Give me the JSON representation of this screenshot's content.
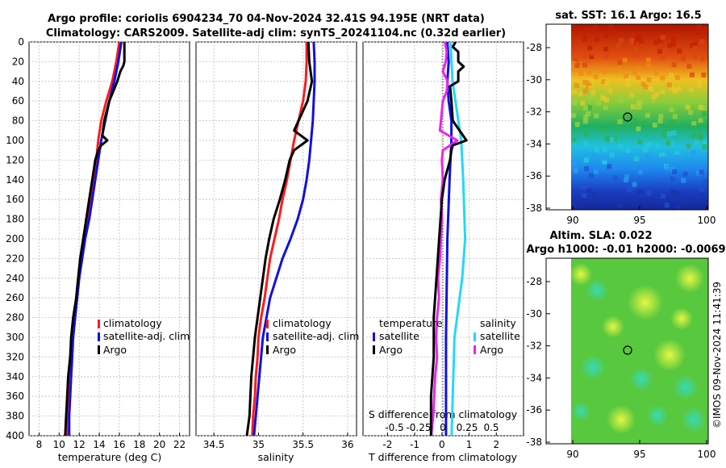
{
  "title_line1": "Argo profile: coriolis 6904234_70 04-Nov-2024 32.41S 94.195E (NRT data)",
  "title_line2": "Climatology: CARS2009. Satellite-adj clim: synTS_20241104.nc (0.32d earlier)",
  "depth_ticks": [
    0,
    20,
    40,
    60,
    80,
    100,
    120,
    140,
    160,
    180,
    200,
    220,
    240,
    260,
    280,
    300,
    320,
    340,
    360,
    380,
    400
  ],
  "panels": {
    "temperature": {
      "xlabel": "temperature (deg C)",
      "xlim": [
        7,
        23
      ],
      "xticks": [
        8,
        10,
        12,
        14,
        16,
        18,
        20,
        22
      ],
      "legend": [
        "climatology",
        "satellite-adj. clim",
        "Argo"
      ]
    },
    "salinity": {
      "xlabel": "salinity",
      "xlim": [
        34.3,
        36.1
      ],
      "xticks": [
        "34.5",
        "35",
        "35.5",
        "36"
      ],
      "legend": [
        "climatology",
        "satellite-adj. clim",
        "Argo"
      ]
    },
    "difference": {
      "xlabel": "T difference from climatology",
      "xlim": [
        -2.9,
        3.0
      ],
      "xticks": [
        "-2",
        "-1",
        "0",
        "1",
        "2"
      ],
      "top_label": "S difference from climatology",
      "top_ticks": [
        "-0.5",
        "-0.25",
        "0",
        "0.25",
        "0.5"
      ],
      "legend_left_title": "temperature",
      "legend_left": [
        "satellite",
        "Argo"
      ],
      "legend_right_title": "salinity",
      "legend_right": [
        "satellite",
        "Argo"
      ]
    }
  },
  "maps": {
    "sst_title": "sat. SST: 16.1 Argo: 16.5",
    "sla_title1": "Altim. SLA: 0.022",
    "sla_title2": "Argo h1000: -0.01 h2000: -0.0069",
    "lat_ticks": [
      "-28",
      "-30",
      "-32",
      "-34",
      "-36",
      "-38"
    ],
    "lon_ticks": [
      "90",
      "95",
      "100"
    ]
  },
  "copyright": "©IMOS 09-Nov-2024 11:41:39",
  "colors": {
    "climatology": "#ff1a1a",
    "satellite": "#1010e0",
    "argo": "#000000",
    "s_satellite": "#22d8ff",
    "s_argo": "#ee22ee"
  },
  "chart_data": [
    {
      "type": "line",
      "name": "temperature",
      "y_label": "depth",
      "ylim": [
        0,
        400
      ],
      "series": [
        {
          "name": "climatology",
          "depth": [
            0,
            20,
            40,
            60,
            80,
            100,
            120,
            140,
            160,
            180,
            200,
            220,
            240,
            260,
            280,
            300,
            320,
            340,
            360,
            380,
            400
          ],
          "values": [
            16.0,
            15.7,
            15.3,
            14.7,
            14.2,
            13.9,
            13.7,
            13.4,
            13.1,
            12.8,
            12.5,
            12.2,
            11.9,
            11.7,
            11.5,
            11.3,
            11.2,
            11.1,
            11.0,
            10.9,
            10.8
          ]
        },
        {
          "name": "satellite-adj. clim",
          "depth": [
            0,
            20,
            40,
            60,
            80,
            100,
            120,
            140,
            160,
            180,
            200,
            220,
            240,
            260,
            280,
            300,
            320,
            340,
            360,
            380,
            400
          ],
          "values": [
            16.2,
            15.9,
            15.5,
            15.0,
            14.6,
            14.2,
            13.9,
            13.6,
            13.3,
            13.0,
            12.6,
            12.3,
            12.0,
            11.8,
            11.6,
            11.4,
            11.3,
            11.2,
            11.1,
            11.0,
            11.0
          ]
        },
        {
          "name": "Argo",
          "depth": [
            0,
            20,
            24,
            30,
            40,
            50,
            60,
            80,
            95,
            100,
            105,
            110,
            120,
            140,
            160,
            180,
            200,
            220,
            240,
            260,
            280,
            300,
            320,
            340,
            360,
            380,
            400
          ],
          "values": [
            16.5,
            16.5,
            16.4,
            16.1,
            15.8,
            15.4,
            15.0,
            14.5,
            14.3,
            14.8,
            14.2,
            13.9,
            13.6,
            13.3,
            13.0,
            12.7,
            12.4,
            12.1,
            11.9,
            11.7,
            11.4,
            11.2,
            11.1,
            10.9,
            10.8,
            10.7,
            10.6
          ]
        }
      ]
    },
    {
      "type": "line",
      "name": "salinity",
      "y_label": "depth",
      "ylim": [
        0,
        400
      ],
      "series": [
        {
          "name": "climatology",
          "depth": [
            0,
            20,
            40,
            60,
            80,
            100,
            120,
            140,
            160,
            180,
            200,
            220,
            240,
            260,
            280,
            300,
            320,
            340,
            360,
            380,
            400
          ],
          "values": [
            35.54,
            35.54,
            35.53,
            35.5,
            35.45,
            35.4,
            35.36,
            35.32,
            35.27,
            35.23,
            35.18,
            35.13,
            35.1,
            35.07,
            35.03,
            35.0,
            34.99,
            34.97,
            34.96,
            34.94,
            34.93
          ]
        },
        {
          "name": "satellite-adj. clim",
          "depth": [
            0,
            20,
            40,
            60,
            80,
            100,
            120,
            140,
            160,
            180,
            200,
            220,
            240,
            260,
            280,
            300,
            320,
            340,
            360,
            380,
            400
          ],
          "values": [
            35.62,
            35.63,
            35.63,
            35.62,
            35.61,
            35.59,
            35.57,
            35.54,
            35.5,
            35.44,
            35.36,
            35.27,
            35.2,
            35.13,
            35.09,
            35.05,
            35.03,
            35.01,
            34.99,
            34.97,
            34.95
          ]
        },
        {
          "name": "Argo",
          "depth": [
            0,
            20,
            40,
            60,
            80,
            90,
            100,
            110,
            120,
            140,
            160,
            180,
            200,
            220,
            240,
            260,
            280,
            300,
            320,
            340,
            360,
            380,
            400
          ],
          "values": [
            35.56,
            35.57,
            35.6,
            35.55,
            35.45,
            35.4,
            35.55,
            35.4,
            35.35,
            35.3,
            35.24,
            35.17,
            35.12,
            35.08,
            35.05,
            35.02,
            34.99,
            34.96,
            34.94,
            34.92,
            34.91,
            34.9,
            34.87
          ]
        }
      ]
    },
    {
      "type": "line",
      "name": "difference",
      "y_label": "depth",
      "ylim": [
        0,
        400
      ],
      "series": [
        {
          "name": "T satellite",
          "depth": [
            0,
            20,
            40,
            60,
            80,
            100,
            140,
            200,
            300,
            400
          ],
          "values": [
            0.2,
            0.25,
            0.2,
            0.25,
            0.35,
            0.35,
            0.28,
            0.2,
            0.15,
            0.15
          ]
        },
        {
          "name": "T Argo",
          "depth": [
            0,
            5,
            10,
            20,
            25,
            30,
            40,
            45,
            60,
            80,
            100,
            105,
            110,
            120,
            140,
            160,
            200,
            240,
            280,
            320,
            360,
            400
          ],
          "values": [
            0.5,
            0.4,
            0.6,
            0.6,
            0.8,
            0.6,
            0.6,
            0.3,
            0.35,
            0.4,
            0.9,
            0.4,
            0.35,
            0.3,
            0.1,
            0.0,
            -0.1,
            -0.2,
            -0.3,
            -0.3,
            -0.4,
            -0.4
          ]
        },
        {
          "name": "S satellite",
          "depth": [
            0,
            20,
            40,
            60,
            80,
            100,
            140,
            200,
            240,
            300,
            400
          ],
          "values": [
            0.08,
            0.09,
            0.1,
            0.13,
            0.16,
            0.19,
            0.21,
            0.23,
            0.2,
            0.12,
            0.09
          ]
        },
        {
          "name": "S Argo",
          "depth": [
            0,
            10,
            20,
            30,
            40,
            50,
            60,
            80,
            90,
            100,
            110,
            120,
            140,
            160,
            180,
            200,
            220,
            240,
            260,
            280,
            300,
            320,
            340,
            360,
            380,
            400
          ],
          "values": [
            0.02,
            0.04,
            0.03,
            0.0,
            0.05,
            0.04,
            0.0,
            -0.02,
            -0.03,
            0.15,
            0.0,
            -0.01,
            0.0,
            -0.02,
            -0.01,
            -0.02,
            -0.03,
            -0.05,
            -0.04,
            -0.06,
            -0.07,
            -0.06,
            -0.08,
            -0.09,
            -0.1,
            -0.12
          ]
        }
      ]
    }
  ]
}
